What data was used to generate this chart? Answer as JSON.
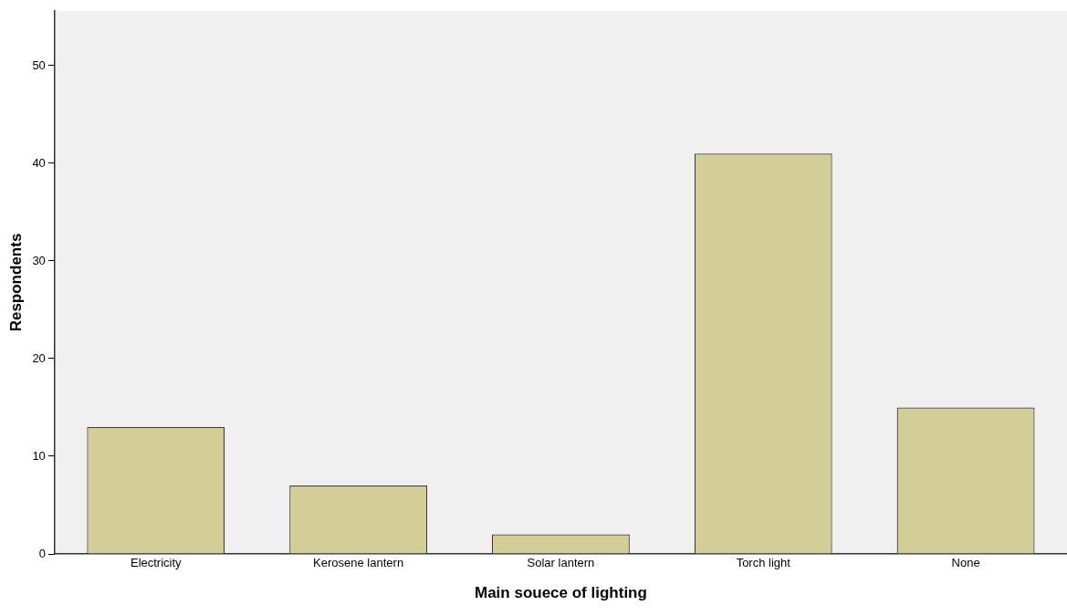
{
  "chart_data": {
    "type": "bar",
    "xlabel": "Main souece of lighting",
    "ylabel": "Respondents",
    "categories": [
      "Electricity",
      "Kerosene lantern",
      "Solar lantern",
      "Torch light",
      "None"
    ],
    "values": [
      13,
      7,
      2,
      41,
      15
    ],
    "color": "#d3ce97",
    "ylim": [
      0,
      55.6
    ],
    "yticks": [
      0,
      10,
      20,
      30,
      40,
      50
    ],
    "grid": false,
    "legend": false
  }
}
